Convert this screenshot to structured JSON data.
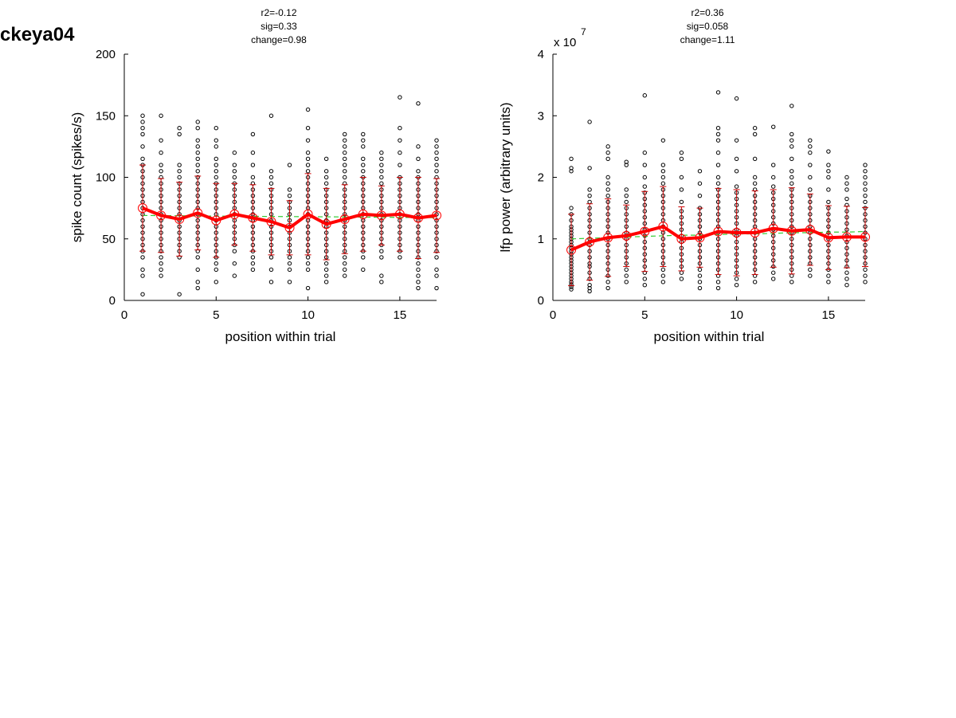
{
  "page_title": "ckeya04",
  "chart_data": [
    {
      "type": "scatter",
      "panel": "spike",
      "stats": [
        "r2=-0.12",
        "sig=0.33",
        "change=0.98"
      ],
      "xlabel": "position within trial",
      "ylabel": "spike count (spikes/s)",
      "xlim": [
        0,
        17
      ],
      "ylim": [
        0,
        200
      ],
      "xticks": [
        0,
        5,
        10,
        15
      ],
      "yticks": [
        0,
        50,
        100,
        150,
        200
      ],
      "tick_labels_x": [
        "0",
        "5",
        "10",
        "15"
      ],
      "tick_labels_y": [
        "0",
        "50",
        "100",
        "150",
        "200"
      ],
      "exponent_label": "",
      "scatter_points": [
        [
          1,
          [
            5,
            20,
            25,
            35,
            40,
            45,
            50,
            55,
            60,
            65,
            70,
            75,
            80,
            85,
            90,
            95,
            100,
            105,
            110,
            115,
            125,
            135,
            140,
            145,
            150
          ]
        ],
        [
          2,
          [
            20,
            25,
            30,
            35,
            40,
            45,
            50,
            55,
            60,
            65,
            70,
            75,
            80,
            85,
            90,
            95,
            100,
            105,
            110,
            120,
            130,
            150
          ]
        ],
        [
          3,
          [
            5,
            35,
            40,
            45,
            50,
            55,
            60,
            65,
            70,
            75,
            80,
            85,
            90,
            95,
            100,
            105,
            110,
            135,
            140
          ]
        ],
        [
          4,
          [
            10,
            15,
            25,
            35,
            40,
            45,
            50,
            55,
            60,
            65,
            70,
            75,
            80,
            85,
            90,
            95,
            100,
            105,
            110,
            115,
            120,
            125,
            130,
            140,
            145
          ]
        ],
        [
          5,
          [
            15,
            25,
            30,
            35,
            40,
            45,
            50,
            55,
            60,
            65,
            70,
            75,
            80,
            85,
            90,
            95,
            100,
            105,
            110,
            115,
            125,
            130,
            140
          ]
        ],
        [
          6,
          [
            20,
            30,
            40,
            45,
            50,
            55,
            60,
            65,
            70,
            75,
            80,
            85,
            90,
            95,
            100,
            105,
            110,
            120
          ]
        ],
        [
          7,
          [
            25,
            30,
            35,
            40,
            45,
            50,
            55,
            60,
            65,
            70,
            75,
            80,
            85,
            90,
            95,
            100,
            110,
            120,
            135
          ]
        ],
        [
          8,
          [
            15,
            25,
            35,
            40,
            45,
            50,
            55,
            60,
            65,
            70,
            75,
            80,
            85,
            90,
            95,
            100,
            105,
            150
          ]
        ],
        [
          9,
          [
            15,
            25,
            30,
            35,
            40,
            45,
            50,
            55,
            60,
            65,
            70,
            75,
            80,
            85,
            90,
            110
          ]
        ],
        [
          10,
          [
            10,
            25,
            30,
            35,
            40,
            45,
            50,
            55,
            60,
            65,
            70,
            75,
            80,
            85,
            90,
            95,
            100,
            105,
            110,
            115,
            120,
            130,
            140,
            155
          ]
        ],
        [
          11,
          [
            15,
            20,
            25,
            30,
            35,
            40,
            45,
            50,
            55,
            60,
            65,
            70,
            75,
            80,
            85,
            90,
            95,
            100,
            105,
            115
          ]
        ],
        [
          12,
          [
            20,
            25,
            30,
            35,
            40,
            45,
            50,
            55,
            60,
            65,
            70,
            75,
            80,
            85,
            90,
            95,
            100,
            105,
            110,
            115,
            120,
            125,
            130,
            135
          ]
        ],
        [
          13,
          [
            25,
            35,
            40,
            45,
            50,
            55,
            60,
            65,
            70,
            75,
            80,
            85,
            90,
            95,
            100,
            105,
            110,
            115,
            125,
            130,
            135
          ]
        ],
        [
          14,
          [
            15,
            20,
            35,
            40,
            45,
            50,
            55,
            60,
            65,
            70,
            75,
            80,
            85,
            90,
            95,
            100,
            105,
            110,
            115,
            120
          ]
        ],
        [
          15,
          [
            35,
            40,
            45,
            50,
            55,
            60,
            65,
            70,
            75,
            80,
            85,
            90,
            95,
            100,
            110,
            120,
            130,
            140,
            165
          ]
        ],
        [
          16,
          [
            10,
            15,
            20,
            25,
            30,
            35,
            40,
            45,
            50,
            55,
            60,
            65,
            70,
            75,
            80,
            85,
            90,
            95,
            100,
            105,
            115,
            125,
            160
          ]
        ],
        [
          17,
          [
            10,
            20,
            25,
            35,
            40,
            45,
            50,
            55,
            60,
            65,
            70,
            75,
            80,
            85,
            90,
            95,
            100,
            105,
            110,
            115,
            120,
            125,
            130
          ]
        ]
      ],
      "mean": [
        75,
        69,
        66,
        71,
        65,
        70,
        67,
        64,
        59,
        70,
        62,
        66,
        70,
        69,
        70,
        67,
        69
      ],
      "sd": [
        35,
        30,
        30,
        30,
        30,
        25,
        27,
        27,
        22,
        33,
        29,
        28,
        30,
        24,
        30,
        33,
        30
      ],
      "fit": [
        69,
        68.9,
        68.8,
        68.6,
        68.5,
        68.4,
        68.3,
        68.2,
        68.1,
        68,
        67.9,
        67.8,
        67.7,
        67.6,
        67.4,
        67.3,
        67.2
      ]
    },
    {
      "type": "scatter",
      "panel": "lfp",
      "stats": [
        "r2=0.36",
        "sig=0.058",
        "change=1.11"
      ],
      "xlabel": "position within trial",
      "ylabel": "lfp power (arbitrary units)",
      "xlim": [
        0,
        17
      ],
      "ylim": [
        0,
        4
      ],
      "xticks": [
        0,
        5,
        10,
        15
      ],
      "yticks": [
        0,
        1,
        2,
        3,
        4
      ],
      "tick_labels_x": [
        "0",
        "5",
        "10",
        "15"
      ],
      "tick_labels_y": [
        "0",
        "1",
        "2",
        "3",
        "4"
      ],
      "exponent_label": "x 10",
      "exponent_power": "7",
      "scatter_points": [
        [
          1,
          [
            0.18,
            0.22,
            0.26,
            0.3,
            0.35,
            0.4,
            0.45,
            0.5,
            0.55,
            0.6,
            0.65,
            0.7,
            0.75,
            0.8,
            0.85,
            0.9,
            0.95,
            1.0,
            1.05,
            1.1,
            1.15,
            1.2,
            1.3,
            1.4,
            1.5,
            2.1,
            2.15,
            2.3
          ]
        ],
        [
          2,
          [
            0.15,
            0.2,
            0.25,
            0.35,
            0.45,
            0.55,
            0.6,
            0.7,
            0.8,
            0.9,
            1.0,
            1.1,
            1.2,
            1.3,
            1.4,
            1.5,
            1.6,
            1.7,
            1.8,
            2.15,
            2.9
          ]
        ],
        [
          3,
          [
            0.2,
            0.3,
            0.4,
            0.5,
            0.6,
            0.7,
            0.8,
            0.9,
            1.0,
            1.1,
            1.2,
            1.3,
            1.4,
            1.5,
            1.6,
            1.7,
            1.8,
            1.9,
            2.0,
            2.3,
            2.4,
            2.5
          ]
        ],
        [
          4,
          [
            0.3,
            0.4,
            0.5,
            0.6,
            0.7,
            0.8,
            0.9,
            1.0,
            1.1,
            1.2,
            1.3,
            1.4,
            1.5,
            1.6,
            1.7,
            1.8,
            2.2,
            2.25
          ]
        ],
        [
          5,
          [
            0.25,
            0.35,
            0.45,
            0.55,
            0.65,
            0.75,
            0.85,
            0.95,
            1.05,
            1.15,
            1.25,
            1.35,
            1.45,
            1.55,
            1.65,
            1.75,
            1.85,
            2.0,
            2.2,
            2.4,
            3.33
          ]
        ],
        [
          6,
          [
            0.3,
            0.4,
            0.5,
            0.6,
            0.7,
            0.8,
            0.9,
            1.0,
            1.1,
            1.2,
            1.3,
            1.4,
            1.5,
            1.6,
            1.7,
            1.8,
            1.9,
            2.0,
            2.1,
            2.2,
            2.6
          ]
        ],
        [
          7,
          [
            0.35,
            0.45,
            0.55,
            0.65,
            0.75,
            0.85,
            0.95,
            1.05,
            1.15,
            1.25,
            1.35,
            1.45,
            1.6,
            1.8,
            2.0,
            2.3,
            2.4
          ]
        ],
        [
          8,
          [
            0.2,
            0.3,
            0.4,
            0.5,
            0.6,
            0.7,
            0.8,
            0.9,
            1.0,
            1.1,
            1.2,
            1.3,
            1.4,
            1.5,
            1.7,
            1.9,
            2.1
          ]
        ],
        [
          9,
          [
            0.2,
            0.3,
            0.4,
            0.5,
            0.6,
            0.7,
            0.8,
            0.9,
            1.0,
            1.1,
            1.2,
            1.3,
            1.4,
            1.5,
            1.6,
            1.7,
            1.8,
            1.9,
            2.0,
            2.2,
            2.4,
            2.6,
            2.7,
            2.8,
            3.38
          ]
        ],
        [
          10,
          [
            0.25,
            0.35,
            0.45,
            0.55,
            0.65,
            0.75,
            0.85,
            0.95,
            1.05,
            1.15,
            1.25,
            1.35,
            1.45,
            1.55,
            1.65,
            1.75,
            1.85,
            2.1,
            2.3,
            2.6,
            3.28
          ]
        ],
        [
          11,
          [
            0.3,
            0.4,
            0.5,
            0.6,
            0.7,
            0.8,
            0.9,
            1.0,
            1.1,
            1.2,
            1.3,
            1.4,
            1.5,
            1.6,
            1.7,
            1.8,
            1.9,
            2.0,
            2.3,
            2.7,
            2.8
          ]
        ],
        [
          12,
          [
            0.35,
            0.45,
            0.55,
            0.65,
            0.75,
            0.85,
            0.95,
            1.05,
            1.15,
            1.25,
            1.35,
            1.45,
            1.55,
            1.65,
            1.75,
            1.85,
            2.0,
            2.2,
            2.82
          ]
        ],
        [
          13,
          [
            0.3,
            0.4,
            0.5,
            0.6,
            0.7,
            0.8,
            0.9,
            1.0,
            1.1,
            1.2,
            1.3,
            1.4,
            1.5,
            1.6,
            1.7,
            1.8,
            1.9,
            2.0,
            2.1,
            2.3,
            2.5,
            2.6,
            2.7,
            3.16
          ]
        ],
        [
          14,
          [
            0.4,
            0.5,
            0.6,
            0.7,
            0.8,
            0.9,
            1.0,
            1.1,
            1.2,
            1.3,
            1.4,
            1.5,
            1.6,
            1.7,
            1.8,
            2.0,
            2.2,
            2.4,
            2.5,
            2.6
          ]
        ],
        [
          15,
          [
            0.3,
            0.4,
            0.5,
            0.6,
            0.7,
            0.8,
            0.9,
            1.0,
            1.1,
            1.2,
            1.3,
            1.4,
            1.5,
            1.6,
            1.8,
            2.0,
            2.1,
            2.2,
            2.42
          ]
        ],
        [
          16,
          [
            0.25,
            0.35,
            0.45,
            0.55,
            0.65,
            0.75,
            0.85,
            0.95,
            1.05,
            1.15,
            1.25,
            1.35,
            1.45,
            1.55,
            1.65,
            1.8,
            1.9,
            2.0
          ]
        ],
        [
          17,
          [
            0.3,
            0.4,
            0.5,
            0.6,
            0.7,
            0.8,
            0.9,
            1.0,
            1.1,
            1.2,
            1.3,
            1.4,
            1.5,
            1.6,
            1.7,
            1.8,
            1.9,
            2.0,
            2.1,
            2.2
          ]
        ]
      ],
      "mean": [
        0.82,
        0.95,
        1.02,
        1.05,
        1.12,
        1.2,
        1.0,
        1.02,
        1.12,
        1.1,
        1.1,
        1.17,
        1.13,
        1.15,
        1.02,
        1.03,
        1.03
      ],
      "sd": [
        0.58,
        0.62,
        0.63,
        0.5,
        0.65,
        0.65,
        0.52,
        0.48,
        0.7,
        0.7,
        0.68,
        0.63,
        0.7,
        0.58,
        0.52,
        0.5,
        0.48
      ],
      "fit": [
        1.0,
        1.01,
        1.02,
        1.03,
        1.04,
        1.05,
        1.06,
        1.06,
        1.07,
        1.08,
        1.08,
        1.09,
        1.1,
        1.1,
        1.11,
        1.11,
        1.12
      ]
    }
  ],
  "colors": {
    "mean_line": "#ff0000",
    "errorbar": "#cc0000",
    "fit_line": "#33cc33",
    "points": "#000000"
  }
}
